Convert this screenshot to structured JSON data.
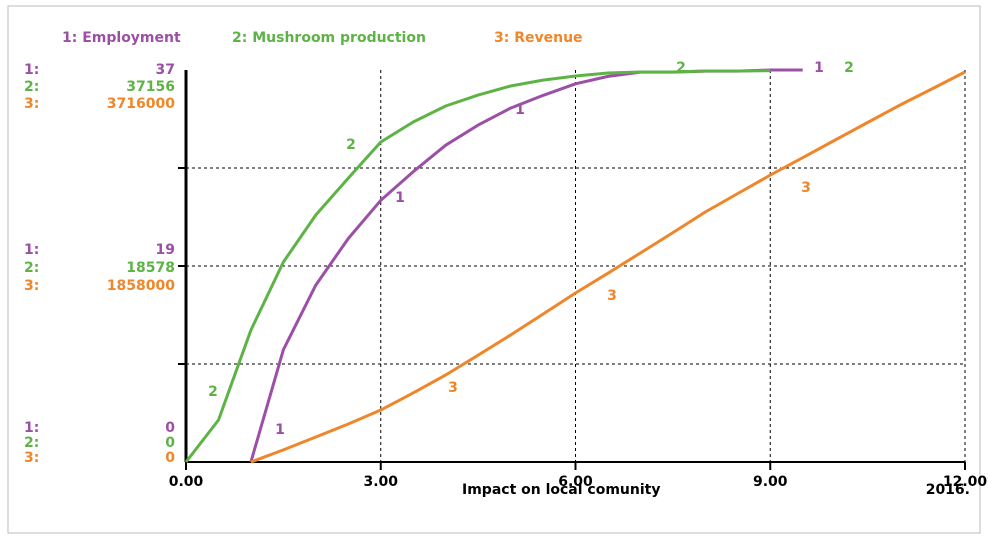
{
  "chart_data": {
    "type": "line",
    "x_label": "Impact on local comunity",
    "note": "2016.",
    "x": [
      0,
      0.5,
      1,
      1.5,
      2,
      2.5,
      3,
      3.5,
      4,
      4.5,
      5,
      5.5,
      6,
      6.5,
      7,
      7.5,
      8,
      8.5,
      9,
      9.5,
      10,
      10.5,
      11,
      11.5,
      12
    ],
    "xlim": [
      0,
      12
    ],
    "xticks": [
      {
        "value": 0,
        "label": "0.00"
      },
      {
        "value": 3,
        "label": "3.00"
      },
      {
        "value": 6,
        "label": "6.00"
      },
      {
        "value": 9,
        "label": "9.00"
      },
      {
        "value": 12,
        "label": "12.00"
      }
    ],
    "grid": true,
    "series": [
      {
        "name": "Employment",
        "key": "1:",
        "marker": "1",
        "color": "#9b4fa5",
        "ylim": [
          0,
          37
        ],
        "yticks": [
          0,
          19,
          37
        ],
        "values": [
          null,
          null,
          0,
          10.6,
          16.7,
          21.1,
          24.7,
          27.4,
          29.9,
          31.8,
          33.4,
          34.6,
          35.7,
          36.4,
          36.8,
          36.8,
          36.9,
          36.9,
          37,
          37,
          null,
          null,
          null,
          null,
          null
        ]
      },
      {
        "name": "Mushroom production",
        "key": "2:",
        "marker": "2",
        "color": "#5db346",
        "ylim": [
          0,
          37156
        ],
        "yticks": [
          0,
          18578,
          37156
        ],
        "values": [
          0,
          3980,
          12500,
          18960,
          23410,
          26910,
          30330,
          32230,
          33740,
          34780,
          35640,
          36200,
          36590,
          36870,
          36970,
          36970,
          37060,
          37060,
          37100,
          null,
          null,
          null,
          null,
          null,
          null
        ]
      },
      {
        "name": "Revenue",
        "key": "3:",
        "marker": "3",
        "color": "#f0862a",
        "ylim": [
          0,
          3716000
        ],
        "yticks": [
          0,
          1858000,
          3716000
        ],
        "values": [
          null,
          null,
          0,
          115000,
          237000,
          360000,
          493000,
          655000,
          825000,
          1012000,
          1204000,
          1402000,
          1602000,
          1790000,
          1981000,
          2175000,
          2370000,
          2545000,
          2720000,
          2885000,
          3052000,
          3218000,
          3384000,
          3540000,
          3697000
        ]
      }
    ]
  }
}
